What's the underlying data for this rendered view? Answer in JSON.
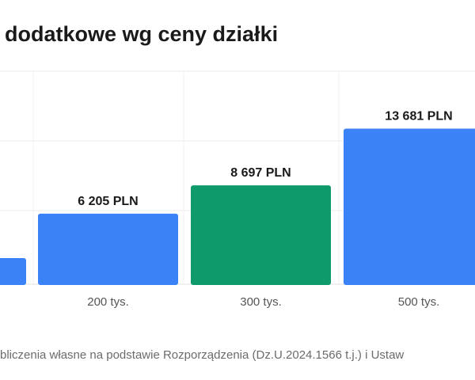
{
  "title": "dodatkowe wg ceny działki",
  "footer": "bliczenia własne na podstawie Rozporządzenia (Dz.U.2024.1566 t.j.) i Ustaw",
  "colors": {
    "bar_default": "#3b82f6",
    "bar_highlight": "#0f9a6b",
    "grid": "#ececec",
    "text": "#1a1a1a",
    "tick": "#555555"
  },
  "chart_data": {
    "type": "bar",
    "categories": [
      "",
      "200 tys.",
      "300 tys.",
      "500 tys."
    ],
    "values": [
      null,
      6205,
      8697,
      13681
    ],
    "value_labels": [
      "",
      "6 205 PLN",
      "8 697 PLN",
      "13 681 PLN"
    ],
    "highlight_index": 2,
    "ylim": [
      0,
      20000
    ],
    "grid": true
  }
}
